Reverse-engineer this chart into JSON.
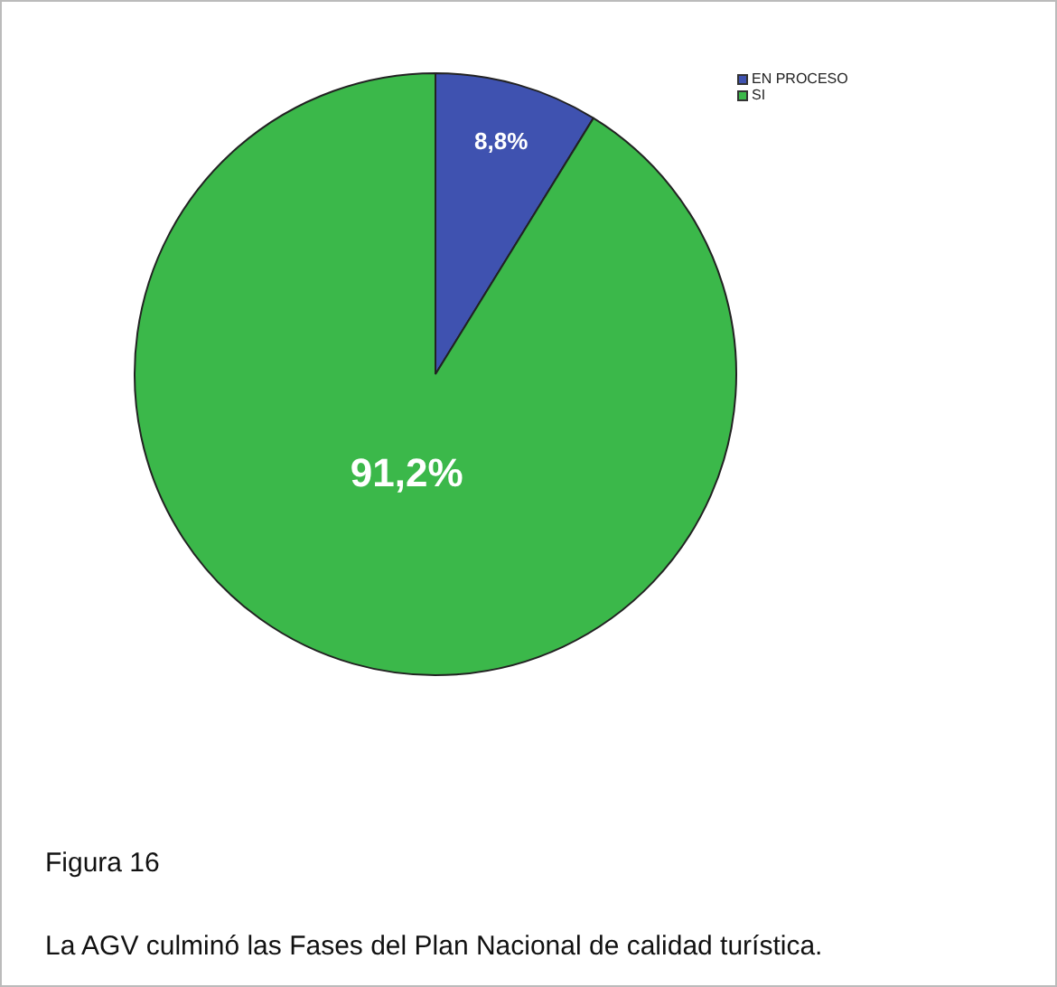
{
  "chart_data": {
    "type": "pie",
    "categories": [
      "EN PROCESO",
      "SI"
    ],
    "values": [
      8.8,
      91.2
    ],
    "colors": [
      "#3f52b0",
      "#3bb84a"
    ],
    "value_labels": [
      "8,8%",
      "91,2%"
    ],
    "legend": "top right",
    "annotations": [
      "Figura 16",
      "La AGV culminó las Fases del Plan Nacional de calidad turística."
    ]
  }
}
